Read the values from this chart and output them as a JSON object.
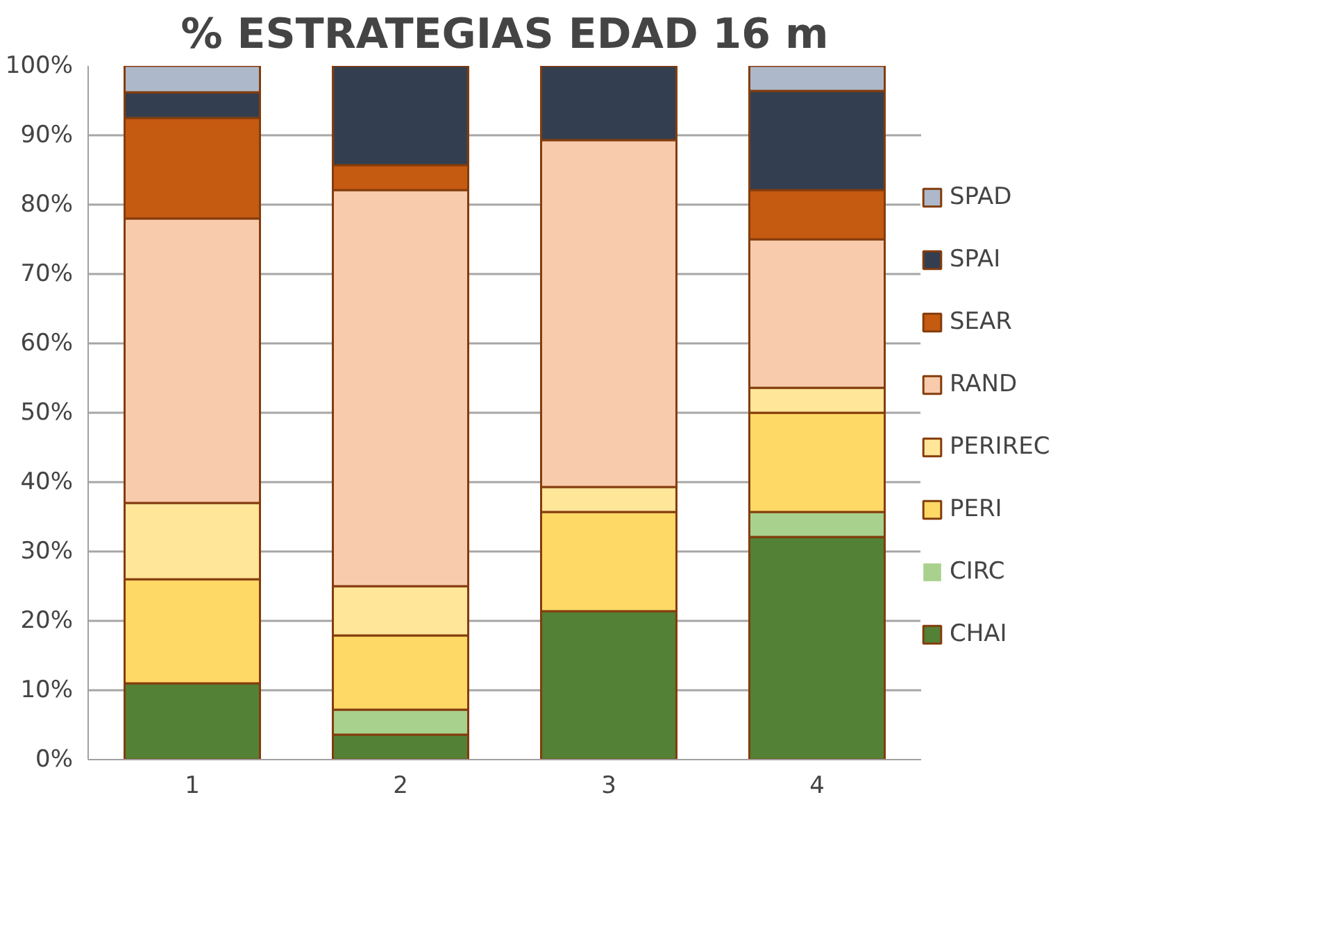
{
  "chart_data": {
    "type": "bar",
    "title": "% ESTRATEGIAS EDAD 16 m",
    "stacked": true,
    "categories": [
      "1",
      "2",
      "3",
      "4"
    ],
    "series": [
      {
        "name": "CHAI",
        "color": "#538135",
        "values": [
          11,
          3.6,
          21.4,
          32.1
        ]
      },
      {
        "name": "CIRC",
        "color": "#a9d18e",
        "values": [
          0,
          3.6,
          0,
          3.6
        ]
      },
      {
        "name": "PERI",
        "color": "#ffd966",
        "values": [
          15,
          10.7,
          14.3,
          14.3
        ]
      },
      {
        "name": "PERIREC",
        "color": "#ffe699",
        "values": [
          11,
          7.1,
          3.6,
          3.6
        ]
      },
      {
        "name": "RAND",
        "color": "#f8cbad",
        "values": [
          41,
          57.1,
          50,
          21.4
        ]
      },
      {
        "name": "SEAR",
        "color": "#c55a11",
        "values": [
          14.5,
          3.6,
          0,
          7.1
        ]
      },
      {
        "name": "SPAI",
        "color": "#333f50",
        "values": [
          3.7,
          14.3,
          10.7,
          14.3
        ]
      },
      {
        "name": "SPAD",
        "color": "#adb9ca",
        "values": [
          3.8,
          0,
          0,
          3.6
        ]
      }
    ],
    "ylim": [
      0,
      100
    ],
    "yticks": [
      {
        "value": 0,
        "label": "0%"
      },
      {
        "value": 10,
        "label": "10%"
      },
      {
        "value": 20,
        "label": "20%"
      },
      {
        "value": 30,
        "label": "30%"
      },
      {
        "value": 40,
        "label": "40%"
      },
      {
        "value": 50,
        "label": "50%"
      },
      {
        "value": 60,
        "label": "60%"
      },
      {
        "value": 70,
        "label": "70%"
      },
      {
        "value": 80,
        "label": "80%"
      },
      {
        "value": 90,
        "label": "90%"
      },
      {
        "value": 100,
        "label": "100%"
      }
    ],
    "grid": "y",
    "legend": "right"
  }
}
